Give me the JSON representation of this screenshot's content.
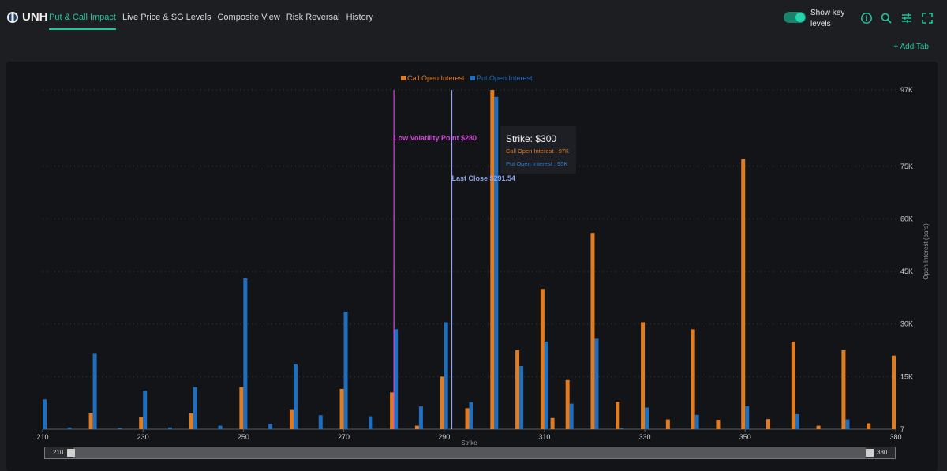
{
  "header": {
    "ticker": "UNH",
    "tabs": [
      {
        "label": "Put & Call Impact",
        "active": true
      },
      {
        "label": "Live Price & SG Levels",
        "active": false
      },
      {
        "label": "Composite View",
        "active": false
      },
      {
        "label": "Risk Reversal",
        "active": false
      },
      {
        "label": "History",
        "active": false
      }
    ],
    "toggle_label": "Show key levels",
    "toggle_on": true,
    "icons": [
      "info-icon",
      "search-icon",
      "sliders-icon",
      "fullscreen-icon"
    ],
    "add_tab_label": "+ Add Tab"
  },
  "colors": {
    "accent": "#1fc7a0",
    "call": "#e07c22",
    "put": "#1f6fc0",
    "low_vol": "#d04ad8",
    "last_close": "#8fa6ee"
  },
  "tooltip": {
    "title": "Strike: $300",
    "call_line": "Call Open Interest : 97K",
    "put_line": "Put Open Interest : 95K"
  },
  "slider": {
    "min_label": "210",
    "max_label": "380"
  },
  "chart_data": {
    "type": "bar",
    "title": "",
    "xlabel": "Strike",
    "ylabel": "Open Interest (bars)",
    "xlim": [
      210,
      380
    ],
    "x_ticks": [
      210,
      230,
      250,
      270,
      290,
      310,
      330,
      350,
      380
    ],
    "y_ticks": [
      {
        "value": 7,
        "label": "7"
      },
      {
        "value": 15000,
        "label": "15K"
      },
      {
        "value": 30000,
        "label": "30K"
      },
      {
        "value": 45000,
        "label": "45K"
      },
      {
        "value": 60000,
        "label": "60K"
      },
      {
        "value": 75000,
        "label": "75K"
      },
      {
        "value": 97000,
        "label": "97K"
      }
    ],
    "ylim": [
      7,
      97000
    ],
    "scale": "nonlinear (sqrt-like, per tick labels)",
    "legend": {
      "position": "top-center"
    },
    "series": [
      {
        "name": "Call Open Interest",
        "points": [
          [
            210,
            0
          ],
          [
            212,
            0
          ],
          [
            220,
            4500
          ],
          [
            230,
            3500
          ],
          [
            240,
            4500
          ],
          [
            250,
            12000
          ],
          [
            260,
            5500
          ],
          [
            270,
            11500
          ],
          [
            275,
            0
          ],
          [
            280,
            10500
          ],
          [
            285,
            1000
          ],
          [
            290,
            15000
          ],
          [
            295,
            6000
          ],
          [
            300,
            97000
          ],
          [
            305,
            22500
          ],
          [
            310,
            40000
          ],
          [
            312,
            3200
          ],
          [
            315,
            14000
          ],
          [
            320,
            56000
          ],
          [
            325,
            7800
          ],
          [
            330,
            30500
          ],
          [
            335,
            2800
          ],
          [
            340,
            28500
          ],
          [
            345,
            2700
          ],
          [
            350,
            77000
          ],
          [
            355,
            2900
          ],
          [
            360,
            25000
          ],
          [
            365,
            1000
          ],
          [
            370,
            22500
          ],
          [
            375,
            1700
          ],
          [
            380,
            21000
          ]
        ]
      },
      {
        "name": "Put Open Interest",
        "points": [
          [
            210,
            8500
          ],
          [
            215,
            500
          ],
          [
            220,
            21500
          ],
          [
            225,
            300
          ],
          [
            230,
            11000
          ],
          [
            235,
            500
          ],
          [
            240,
            12000
          ],
          [
            245,
            1000
          ],
          [
            250,
            43000
          ],
          [
            255,
            1500
          ],
          [
            260,
            18500
          ],
          [
            265,
            4000
          ],
          [
            270,
            33500
          ],
          [
            272,
            0
          ],
          [
            275,
            3700
          ],
          [
            280,
            28500
          ],
          [
            285,
            6500
          ],
          [
            290,
            30500
          ],
          [
            295,
            7700
          ],
          [
            300,
            95000
          ],
          [
            305,
            18000
          ],
          [
            310,
            25000
          ],
          [
            315,
            7300
          ],
          [
            320,
            25800
          ],
          [
            325,
            300
          ],
          [
            330,
            6200
          ],
          [
            340,
            4100
          ],
          [
            350,
            6600
          ],
          [
            360,
            4300
          ],
          [
            370,
            2800
          ]
        ]
      }
    ],
    "reference_lines": [
      {
        "label": "Low Volatility Point $280",
        "x": 280,
        "color": "#d04ad8"
      },
      {
        "label": "Last Close $291.54",
        "x": 291.54,
        "color": "#8fa6ee"
      }
    ]
  }
}
